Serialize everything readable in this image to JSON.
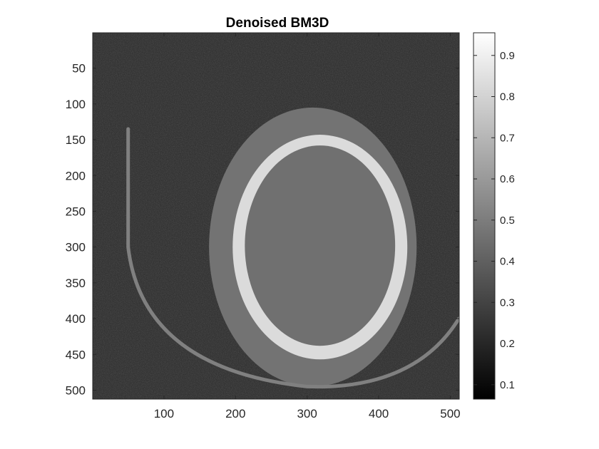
{
  "chart_data": {
    "type": "heatmap",
    "title": "Denoised BM3D",
    "xlabel": "",
    "ylabel": "",
    "xlim": [
      0.5,
      512.5
    ],
    "ylim": [
      0.5,
      512.5
    ],
    "y_direction": "reverse",
    "colormap": "gray",
    "x_ticks": [
      100,
      200,
      300,
      400,
      500
    ],
    "y_ticks": [
      50,
      100,
      150,
      200,
      250,
      300,
      350,
      400,
      450,
      500
    ],
    "colorbar": {
      "position": "right",
      "clim": [
        0.065,
        0.955
      ],
      "ticks": [
        0.1,
        0.2,
        0.3,
        0.4,
        0.5,
        0.6,
        0.7,
        0.8,
        0.9
      ]
    },
    "image_regions": [
      {
        "name": "background",
        "intensity": 0.2
      },
      {
        "name": "soft-tissue",
        "intensity": 0.45,
        "center": [
          308,
          300
        ],
        "radius": [
          145,
          195
        ]
      },
      {
        "name": "skull-bone",
        "intensity": 0.86,
        "center": [
          318,
          300
        ],
        "radius": [
          122,
          157
        ]
      },
      {
        "name": "brain",
        "intensity": 0.44,
        "center": [
          318,
          298
        ],
        "radius": [
          105,
          140
        ]
      },
      {
        "name": "head-holder",
        "intensity": 0.5
      }
    ]
  }
}
